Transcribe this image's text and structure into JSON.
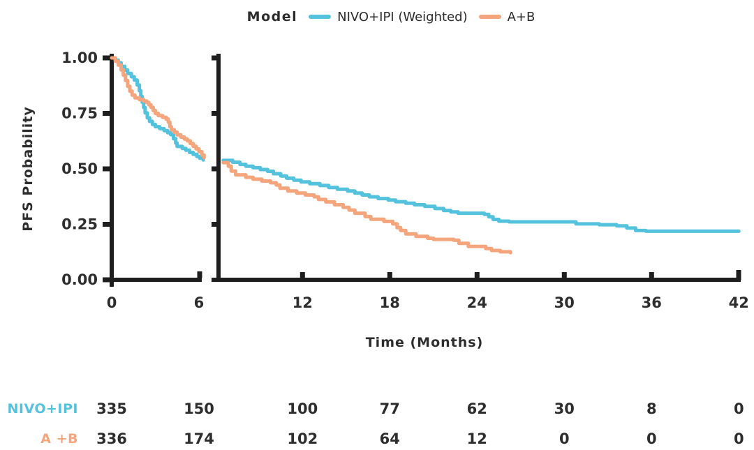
{
  "legend": {
    "title": "Model",
    "items": [
      {
        "label": "NIVO+IPI (Weighted)",
        "color": "#54C2DC"
      },
      {
        "label": "A+B",
        "color": "#F4A57C"
      }
    ]
  },
  "chart_data": {
    "type": "line",
    "subtype": "kaplan-meier-step-curves-with-broken-x-axis",
    "title": "",
    "xlabel": "Time (Months)",
    "ylabel": "PFS Probability",
    "x_ticks": [
      0,
      6,
      12,
      18,
      24,
      30,
      36,
      42
    ],
    "y_ticks": [
      0,
      0.25,
      0.5,
      0.75,
      1
    ],
    "y_tick_labels": [
      "0.00",
      "0.25",
      "0.50",
      "0.75",
      "1.00"
    ],
    "xlim": [
      0,
      42
    ],
    "ylim": [
      0,
      1
    ],
    "axis_break_between_months": [
      6.3,
      6.55
    ],
    "grid": false,
    "legend_position": "top",
    "series": [
      {
        "name": "NIVO+IPI (Weighted)",
        "color": "#54C2DC",
        "panel1": [
          [
            0,
            1
          ],
          [
            0.25,
            0.99
          ],
          [
            0.45,
            0.978
          ],
          [
            0.65,
            0.962
          ],
          [
            0.9,
            0.945
          ],
          [
            1.1,
            0.93
          ],
          [
            1.35,
            0.915
          ],
          [
            1.55,
            0.9
          ],
          [
            1.75,
            0.878
          ],
          [
            1.9,
            0.852
          ],
          [
            2.0,
            0.826
          ],
          [
            2.1,
            0.8
          ],
          [
            2.2,
            0.776
          ],
          [
            2.3,
            0.752
          ],
          [
            2.45,
            0.73
          ],
          [
            2.6,
            0.714
          ],
          [
            2.8,
            0.7
          ],
          [
            3.0,
            0.69
          ],
          [
            3.3,
            0.681
          ],
          [
            3.6,
            0.672
          ],
          [
            3.85,
            0.663
          ],
          [
            4.05,
            0.654
          ],
          [
            4.25,
            0.636
          ],
          [
            4.4,
            0.616
          ],
          [
            4.5,
            0.601
          ],
          [
            4.85,
            0.592
          ],
          [
            5.1,
            0.584
          ],
          [
            5.35,
            0.574
          ],
          [
            5.6,
            0.565
          ],
          [
            5.85,
            0.556
          ],
          [
            6.05,
            0.548
          ],
          [
            6.3,
            0.54
          ]
        ],
        "panel2": [
          [
            6.55,
            0.538
          ],
          [
            7.2,
            0.53
          ],
          [
            7.7,
            0.52
          ],
          [
            8.1,
            0.512
          ],
          [
            8.6,
            0.505
          ],
          [
            9.1,
            0.497
          ],
          [
            9.6,
            0.489
          ],
          [
            10.0,
            0.478
          ],
          [
            10.5,
            0.468
          ],
          [
            10.9,
            0.458
          ],
          [
            11.4,
            0.449
          ],
          [
            11.9,
            0.441
          ],
          [
            12.5,
            0.433
          ],
          [
            13.2,
            0.425
          ],
          [
            13.8,
            0.416
          ],
          [
            14.4,
            0.408
          ],
          [
            15.1,
            0.4
          ],
          [
            15.6,
            0.391
          ],
          [
            16.1,
            0.382
          ],
          [
            16.6,
            0.374
          ],
          [
            17.2,
            0.366
          ],
          [
            17.9,
            0.359
          ],
          [
            18.4,
            0.352
          ],
          [
            19.1,
            0.345
          ],
          [
            19.7,
            0.338
          ],
          [
            20.4,
            0.331
          ],
          [
            21.1,
            0.321
          ],
          [
            21.7,
            0.312
          ],
          [
            22.2,
            0.306
          ],
          [
            22.7,
            0.3
          ],
          [
            24.5,
            0.295
          ],
          [
            24.8,
            0.284
          ],
          [
            25.1,
            0.272
          ],
          [
            25.5,
            0.264
          ],
          [
            26.2,
            0.261
          ],
          [
            30.8,
            0.252
          ],
          [
            32.4,
            0.248
          ],
          [
            33.6,
            0.243
          ],
          [
            34.3,
            0.233
          ],
          [
            34.9,
            0.222
          ],
          [
            35.6,
            0.219
          ],
          [
            42,
            0.219
          ]
        ]
      },
      {
        "name": "A+B",
        "color": "#F4A57C",
        "panel1": [
          [
            0,
            1
          ],
          [
            0.25,
            0.985
          ],
          [
            0.45,
            0.968
          ],
          [
            0.65,
            0.946
          ],
          [
            0.8,
            0.922
          ],
          [
            0.95,
            0.898
          ],
          [
            1.1,
            0.872
          ],
          [
            1.25,
            0.85
          ],
          [
            1.4,
            0.832
          ],
          [
            1.6,
            0.82
          ],
          [
            1.9,
            0.812
          ],
          [
            2.2,
            0.806
          ],
          [
            2.4,
            0.799
          ],
          [
            2.55,
            0.789
          ],
          [
            2.7,
            0.777
          ],
          [
            2.85,
            0.763
          ],
          [
            3.0,
            0.75
          ],
          [
            3.2,
            0.74
          ],
          [
            3.5,
            0.732
          ],
          [
            3.75,
            0.724
          ],
          [
            3.9,
            0.71
          ],
          [
            4.0,
            0.69
          ],
          [
            4.1,
            0.676
          ],
          [
            4.3,
            0.665
          ],
          [
            4.5,
            0.653
          ],
          [
            4.75,
            0.643
          ],
          [
            5.0,
            0.634
          ],
          [
            5.2,
            0.626
          ],
          [
            5.4,
            0.614
          ],
          [
            5.6,
            0.602
          ],
          [
            5.8,
            0.59
          ],
          [
            6.0,
            0.577
          ],
          [
            6.2,
            0.562
          ],
          [
            6.35,
            0.55
          ]
        ],
        "panel2": [
          [
            6.55,
            0.528
          ],
          [
            6.9,
            0.512
          ],
          [
            7.1,
            0.49
          ],
          [
            7.4,
            0.473
          ],
          [
            8.1,
            0.462
          ],
          [
            8.6,
            0.453
          ],
          [
            9.2,
            0.445
          ],
          [
            9.8,
            0.437
          ],
          [
            10.2,
            0.427
          ],
          [
            10.45,
            0.413
          ],
          [
            11.0,
            0.4
          ],
          [
            11.6,
            0.391
          ],
          [
            12.2,
            0.382
          ],
          [
            12.8,
            0.374
          ],
          [
            13.1,
            0.362
          ],
          [
            13.6,
            0.351
          ],
          [
            14.2,
            0.338
          ],
          [
            14.8,
            0.326
          ],
          [
            15.2,
            0.314
          ],
          [
            15.6,
            0.3
          ],
          [
            16.3,
            0.285
          ],
          [
            16.7,
            0.273
          ],
          [
            17.6,
            0.263
          ],
          [
            18.2,
            0.252
          ],
          [
            18.5,
            0.235
          ],
          [
            18.75,
            0.222
          ],
          [
            19.1,
            0.207
          ],
          [
            19.8,
            0.196
          ],
          [
            20.6,
            0.187
          ],
          [
            21.0,
            0.182
          ],
          [
            22.4,
            0.178
          ],
          [
            22.75,
            0.164
          ],
          [
            23.4,
            0.15
          ],
          [
            24.6,
            0.141
          ],
          [
            25.0,
            0.132
          ],
          [
            25.6,
            0.126
          ],
          [
            26.3,
            0.122
          ]
        ]
      }
    ]
  },
  "risk_table": {
    "time_points": [
      0,
      6,
      12,
      18,
      24,
      30,
      36,
      42
    ],
    "rows": [
      {
        "label": "NIVO+IPI",
        "color": "#54C2DC",
        "values": [
          "335",
          "150",
          "100",
          "77",
          "62",
          "30",
          "8",
          "0"
        ]
      },
      {
        "label": "A +B",
        "color": "#F4A57C",
        "values": [
          "336",
          "174",
          "102",
          "64",
          "12",
          "0",
          "0",
          "0"
        ]
      }
    ]
  },
  "colors": {
    "axis": "#1e1e1e",
    "text": "#2d2d2d",
    "nivo_ipi": "#54C2DC",
    "a_plus_b": "#F4A57C"
  }
}
